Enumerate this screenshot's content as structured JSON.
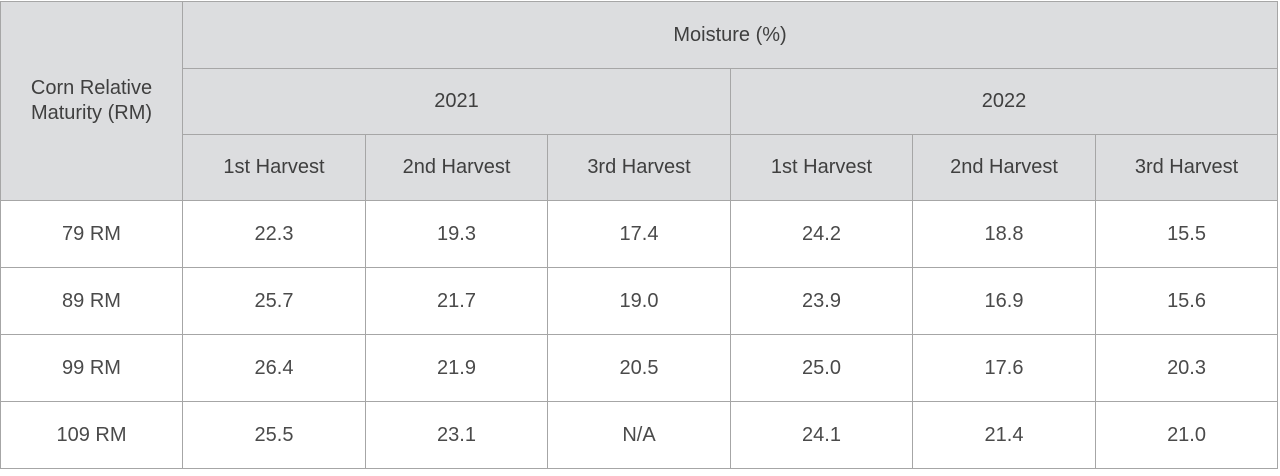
{
  "table": {
    "row_header_label": "Corn Relative Maturity (RM)",
    "group_label": "Moisture (%)",
    "years": [
      "2021",
      "2022"
    ],
    "harvests": [
      "1st Harvest",
      "2nd Harvest",
      "3rd Harvest"
    ],
    "rows": [
      {
        "rm": "79 RM",
        "values": [
          "22.3",
          "19.3",
          "17.4",
          "24.2",
          "18.8",
          "15.5"
        ]
      },
      {
        "rm": "89 RM",
        "values": [
          "25.7",
          "21.7",
          "19.0",
          "23.9",
          "16.9",
          "15.6"
        ]
      },
      {
        "rm": "99 RM",
        "values": [
          "26.4",
          "21.9",
          "20.5",
          "25.0",
          "17.6",
          "20.3"
        ]
      },
      {
        "rm": "109 RM",
        "values": [
          "25.5",
          "23.1",
          "N/A",
          "24.1",
          "21.4",
          "21.0"
        ]
      }
    ]
  },
  "colors": {
    "header_bg": "#dcdddf",
    "border": "#a6a6a6",
    "text": "#444444"
  }
}
